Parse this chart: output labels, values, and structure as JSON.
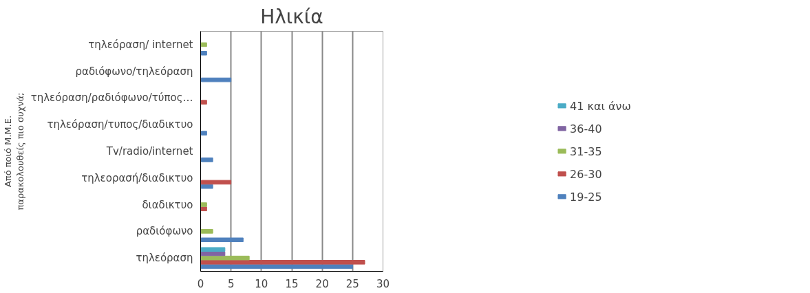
{
  "chart_data": {
    "type": "bar",
    "orientation": "horizontal",
    "title": "Ηλικία",
    "ylabel": "Από ποιό Μ.Μ.Ε.\nπαρακολουθείς πιο συχνά;",
    "categories": [
      "τηλεόραση/ internet",
      "ραδιόφωνο/τηλεόραση",
      "τηλεόραση/ραδιόφωνο/τύπος…",
      "τηλεόραση/τυπος/διαδικτυο",
      "Tv/radio/internet",
      "τηλεορασή/διαδικτυο",
      "διαδικτυο",
      "ραδιόφωνο",
      "τηλεόραση"
    ],
    "series": [
      {
        "name": "19-25",
        "color": "#4f81bd",
        "values": [
          1,
          5,
          0,
          1,
          2,
          2,
          0,
          7,
          25
        ]
      },
      {
        "name": "26-30",
        "color": "#c0504d",
        "values": [
          0,
          0,
          1,
          0,
          0,
          5,
          1,
          0,
          27
        ]
      },
      {
        "name": "31-35",
        "color": "#9bbb59",
        "values": [
          1,
          0,
          0,
          0,
          0,
          0,
          1,
          2,
          8
        ]
      },
      {
        "name": "36-40",
        "color": "#8064a2",
        "values": [
          0,
          0,
          0,
          0,
          0,
          0,
          0,
          0,
          4
        ]
      },
      {
        "name": "41 και άνω",
        "color": "#4bacc6",
        "values": [
          0,
          0,
          0,
          0,
          0,
          0,
          0,
          0,
          4
        ]
      }
    ],
    "xlim": [
      0,
      30
    ],
    "xticks": [
      0,
      5,
      10,
      15,
      20,
      25,
      30
    ],
    "grid": "x",
    "legend": "right"
  }
}
